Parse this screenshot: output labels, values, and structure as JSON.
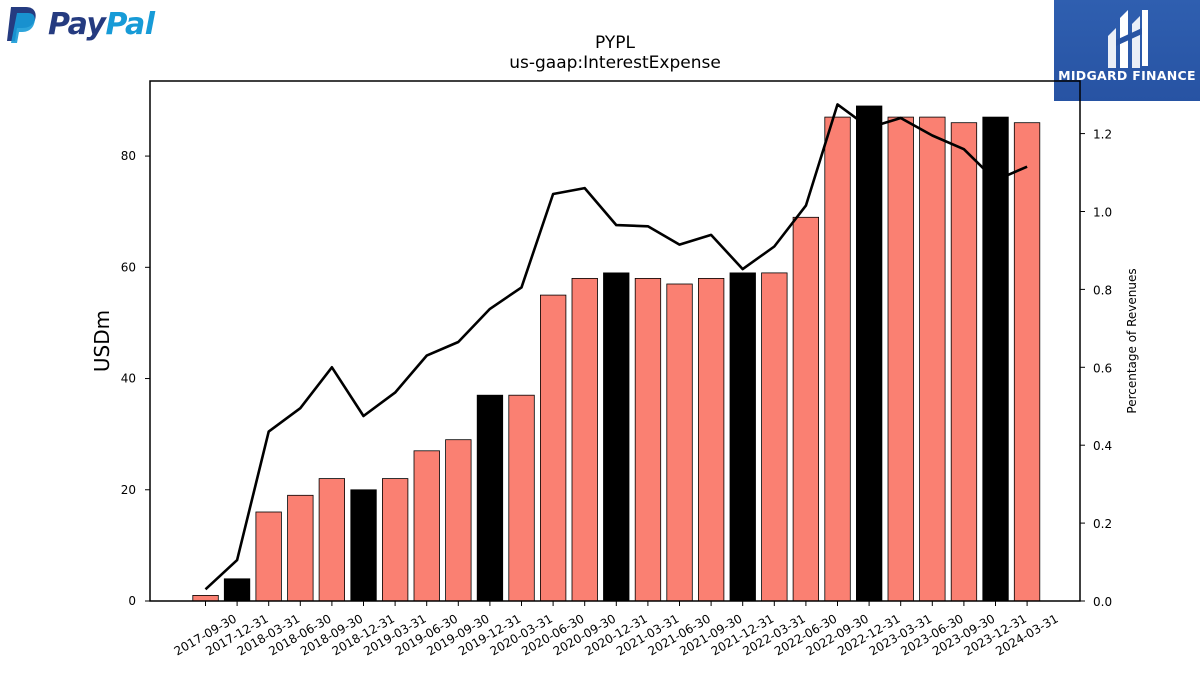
{
  "logos": {
    "left_part1": "Pay",
    "left_part2": "Pal",
    "right_text": "MIDGARD FINANCE",
    "left_colors": [
      "#253b80",
      "#179bd7"
    ],
    "right_background": "#2753a3"
  },
  "chart_data": {
    "type": "bar",
    "title": "PYPL",
    "subtitle": "us-gaap:InterestExpense",
    "ylabel": "USDm",
    "y2label": "Percentage of Revenues",
    "ylim": [
      0,
      93.5
    ],
    "y2lim": [
      0,
      1.335
    ],
    "yticks": [
      0,
      20,
      40,
      60,
      80
    ],
    "y2ticks": [
      "0.0",
      "0.2",
      "0.4",
      "0.6",
      "0.8",
      "1.0",
      "1.2"
    ],
    "categories": [
      "2017-09-30",
      "2017-12-31",
      "2018-03-31",
      "2018-06-30",
      "2018-09-30",
      "2018-12-31",
      "2019-03-31",
      "2019-06-30",
      "2019-09-30",
      "2019-12-31",
      "2020-03-31",
      "2020-06-30",
      "2020-09-30",
      "2020-12-31",
      "2021-03-31",
      "2021-06-30",
      "2021-09-30",
      "2021-12-31",
      "2022-03-31",
      "2022-06-30",
      "2022-09-30",
      "2022-12-31",
      "2023-03-31",
      "2023-06-30",
      "2023-09-30",
      "2023-12-31",
      "2024-03-31"
    ],
    "values": [
      1,
      4,
      16,
      19,
      22,
      20,
      22,
      27,
      29,
      37,
      37,
      55,
      58,
      59,
      58,
      57,
      58,
      59,
      59,
      69,
      87,
      89,
      87,
      87,
      86,
      87,
      86
    ],
    "quarter_end_highlight": [
      false,
      true,
      false,
      false,
      false,
      true,
      false,
      false,
      false,
      true,
      false,
      false,
      false,
      true,
      false,
      false,
      false,
      true,
      false,
      false,
      false,
      true,
      false,
      false,
      false,
      true,
      false
    ],
    "line_series": {
      "axis": "right",
      "values": [
        0.03,
        0.105,
        0.435,
        0.495,
        0.6,
        0.475,
        0.535,
        0.63,
        0.665,
        0.75,
        0.805,
        1.045,
        1.06,
        0.965,
        0.962,
        0.915,
        0.94,
        0.852,
        0.91,
        1.015,
        1.275,
        1.215,
        1.24,
        1.195,
        1.16,
        1.08,
        1.115
      ]
    },
    "colors": {
      "bar": "#fa8072",
      "bar_highlight": "#000000",
      "line": "#000000"
    },
    "grid": false
  }
}
